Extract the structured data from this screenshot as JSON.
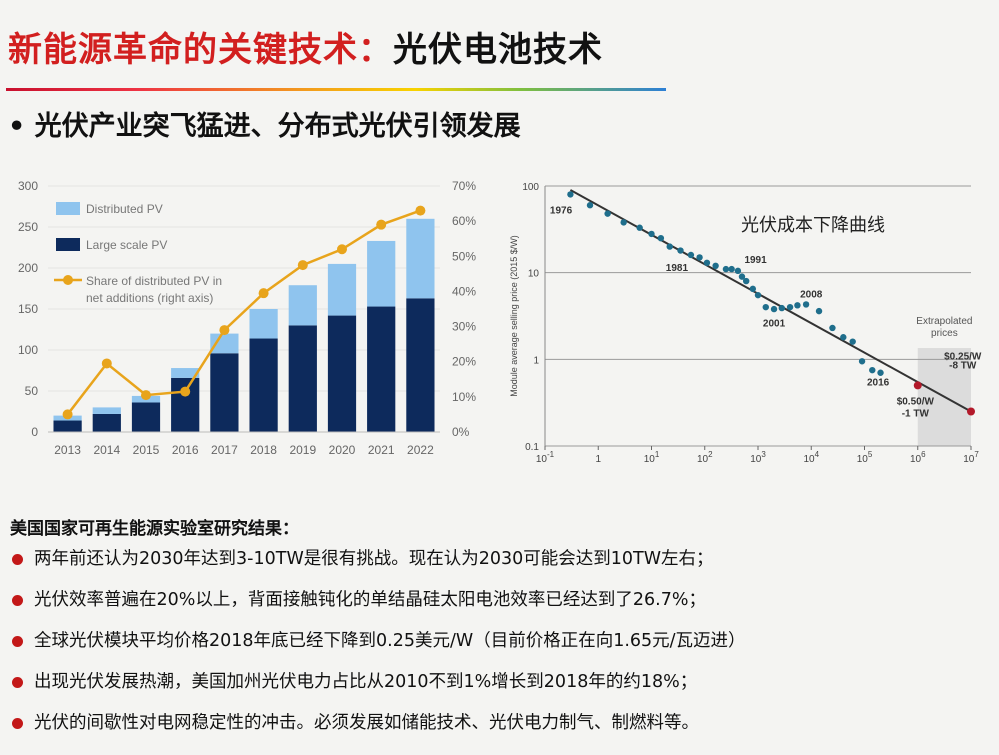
{
  "title": {
    "red_part": "新能源革命的关键技术：",
    "dark_part": "光伏电池技术"
  },
  "subtitle": "• 光伏产业突飞猛进、分布式光伏引领发展",
  "colors": {
    "title_red": "#d21f1f",
    "distributed_pv": "#8fc4ee",
    "large_scale_pv": "#0d2a5c",
    "share_line": "#e8a41c",
    "bullet": "#c31818",
    "learning_points": "#1f6e8c",
    "learning_line": "#333333",
    "extrapolated": "#b3192a"
  },
  "chart_data": [
    {
      "type": "bar",
      "stacked": true,
      "categories": [
        "2013",
        "2014",
        "2015",
        "2016",
        "2017",
        "2018",
        "2019",
        "2020",
        "2021",
        "2022"
      ],
      "series": [
        {
          "name": "Large scale PV",
          "values": [
            14,
            22,
            36,
            66,
            96,
            114,
            130,
            142,
            153,
            163
          ]
        },
        {
          "name": "Distributed PV",
          "values": [
            6,
            8,
            8,
            12,
            24,
            36,
            49,
            63,
            80,
            97
          ]
        },
        {
          "name": "Share of distributed PV in net additions (right axis)",
          "axis": "right",
          "values": [
            0.05,
            0.195,
            0.105,
            0.115,
            0.29,
            0.395,
            0.475,
            0.52,
            0.59,
            0.63
          ]
        }
      ],
      "y_ticks": [
        "0",
        "50",
        "100",
        "150",
        "200",
        "250",
        "300"
      ],
      "ylim": [
        0,
        300
      ],
      "y2_ticks": [
        "0%",
        "10%",
        "20%",
        "30%",
        "40%",
        "50%",
        "60%",
        "70%"
      ],
      "y2lim": [
        0,
        0.7
      ],
      "legend": [
        "Distributed PV",
        "Large scale PV",
        "Share of distributed PV in",
        "net additions (right axis)"
      ],
      "legend_position": "top-left",
      "grid": true
    },
    {
      "type": "scatter",
      "log_x": true,
      "log_y": true,
      "xlim": [
        0.1,
        10000000
      ],
      "ylim": [
        0.1,
        100
      ],
      "ylabel": "Module average selling price (2015 $/W)",
      "x_tick_exponents": [
        -1,
        0,
        1,
        2,
        3,
        4,
        5,
        6,
        7
      ],
      "y_ticks": [
        "100",
        "10",
        "1",
        "0.1"
      ],
      "points": [
        {
          "x": 0.3,
          "y": 80
        },
        {
          "x": 0.7,
          "y": 60
        },
        {
          "x": 1.5,
          "y": 48
        },
        {
          "x": 3,
          "y": 38
        },
        {
          "x": 6,
          "y": 33
        },
        {
          "x": 10,
          "y": 28
        },
        {
          "x": 15,
          "y": 25
        },
        {
          "x": 22,
          "y": 20
        },
        {
          "x": 35,
          "y": 18
        },
        {
          "x": 55,
          "y": 16
        },
        {
          "x": 80,
          "y": 15
        },
        {
          "x": 110,
          "y": 13
        },
        {
          "x": 160,
          "y": 12
        },
        {
          "x": 250,
          "y": 11
        },
        {
          "x": 320,
          "y": 11
        },
        {
          "x": 420,
          "y": 10.5
        },
        {
          "x": 500,
          "y": 9
        },
        {
          "x": 600,
          "y": 8
        },
        {
          "x": 800,
          "y": 6.5
        },
        {
          "x": 1000,
          "y": 5.5
        },
        {
          "x": 1400,
          "y": 4
        },
        {
          "x": 2000,
          "y": 3.8
        },
        {
          "x": 2800,
          "y": 3.9
        },
        {
          "x": 4000,
          "y": 4
        },
        {
          "x": 5500,
          "y": 4.2
        },
        {
          "x": 8000,
          "y": 4.3
        },
        {
          "x": 14000,
          "y": 3.6
        },
        {
          "x": 25000,
          "y": 2.3
        },
        {
          "x": 40000,
          "y": 1.8
        },
        {
          "x": 60000,
          "y": 1.6
        },
        {
          "x": 90000,
          "y": 0.95
        },
        {
          "x": 140000,
          "y": 0.75
        },
        {
          "x": 200000,
          "y": 0.7
        }
      ],
      "trend_line": [
        [
          0.3,
          90
        ],
        [
          10000000,
          0.25
        ]
      ],
      "extrapolated_points": [
        {
          "x": 1000000,
          "y": 0.5
        },
        {
          "x": 10000000,
          "y": 0.25
        }
      ],
      "annotations": [
        {
          "text": "1976",
          "x": 0.2,
          "y": 48
        },
        {
          "text": "1981",
          "x": 30,
          "y": 10.5
        },
        {
          "text": "1991",
          "x": 900,
          "y": 13
        },
        {
          "text": "2008",
          "x": 10000,
          "y": 5.2
        },
        {
          "text": "2001",
          "x": 2000,
          "y": 2.4
        },
        {
          "text": "2016",
          "x": 180000,
          "y": 0.5
        },
        {
          "text": "$0.50/W",
          "x": 900000,
          "y": 0.3
        },
        {
          "text": "-1 TW",
          "x": 900000,
          "y": 0.22
        },
        {
          "text": "$0.25/W",
          "x": 7000000,
          "y": 1.0
        },
        {
          "text": "-8 TW",
          "x": 7000000,
          "y": 0.78
        }
      ],
      "extrapolated_label": [
        "Extrapolated",
        "prices"
      ],
      "note": "光伏成本下降曲线"
    }
  ],
  "section_heading": "美国国家可再生能源实验室研究结果：",
  "bullets": [
    "两年前还认为2030年达到3-10TW是很有挑战。现在认为2030可能会达到10TW左右；",
    "光伏效率普遍在20%以上，背面接触钝化的单结晶硅太阳电池效率已经达到了26.7%；",
    "全球光伏模块平均价格2018年底已经下降到0.25美元/W（目前价格正在向1.65元/瓦迈进）",
    "出现光伏发展热潮，美国加州光伏电力占比从2010不到1%增长到2018年的约18%；",
    "光伏的间歇性对电网稳定性的冲击。必须发展如储能技术、光伏电力制气、制燃料等。"
  ]
}
